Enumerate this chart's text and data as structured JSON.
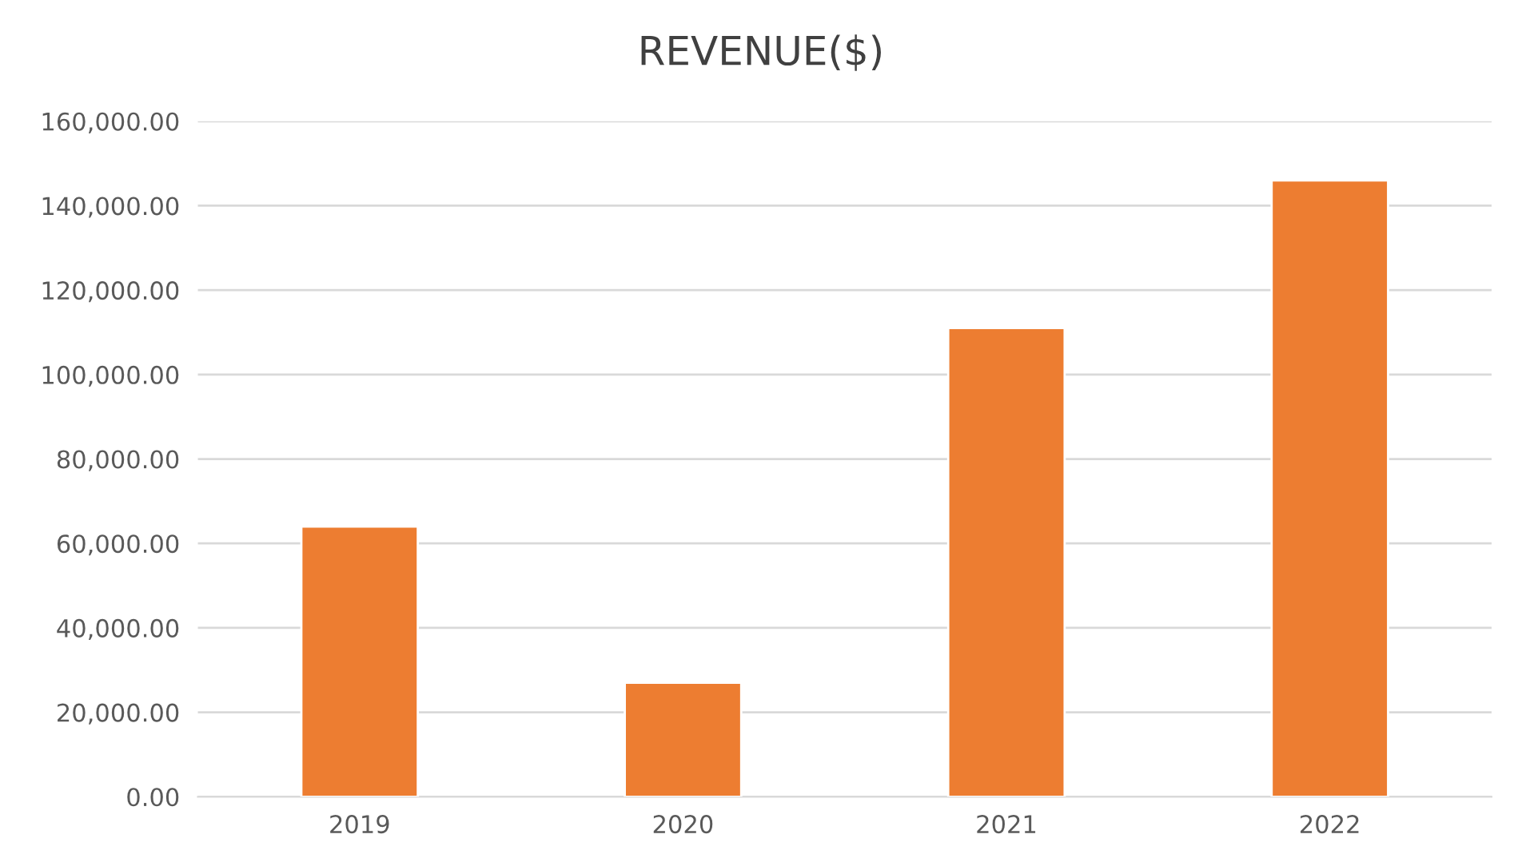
{
  "chart_data": {
    "type": "bar",
    "title": "REVENUE($)",
    "categories": [
      "2019",
      "2020",
      "2021",
      "2022"
    ],
    "values": [
      64000,
      27000,
      111000,
      146000
    ],
    "color": "#ed7d31",
    "ylim": [
      0,
      160000
    ],
    "yticks": [
      {
        "value": 0,
        "label": "0.00"
      },
      {
        "value": 20000,
        "label": "20,000.00"
      },
      {
        "value": 40000,
        "label": "40,000.00"
      },
      {
        "value": 60000,
        "label": "60,000.00"
      },
      {
        "value": 80000,
        "label": "80,000.00"
      },
      {
        "value": 100000,
        "label": "100,000.00"
      },
      {
        "value": 120000,
        "label": "120,000.00"
      },
      {
        "value": 140000,
        "label": "140,000.00"
      },
      {
        "value": 160000,
        "label": "160,000.00"
      }
    ],
    "grid": "y"
  }
}
